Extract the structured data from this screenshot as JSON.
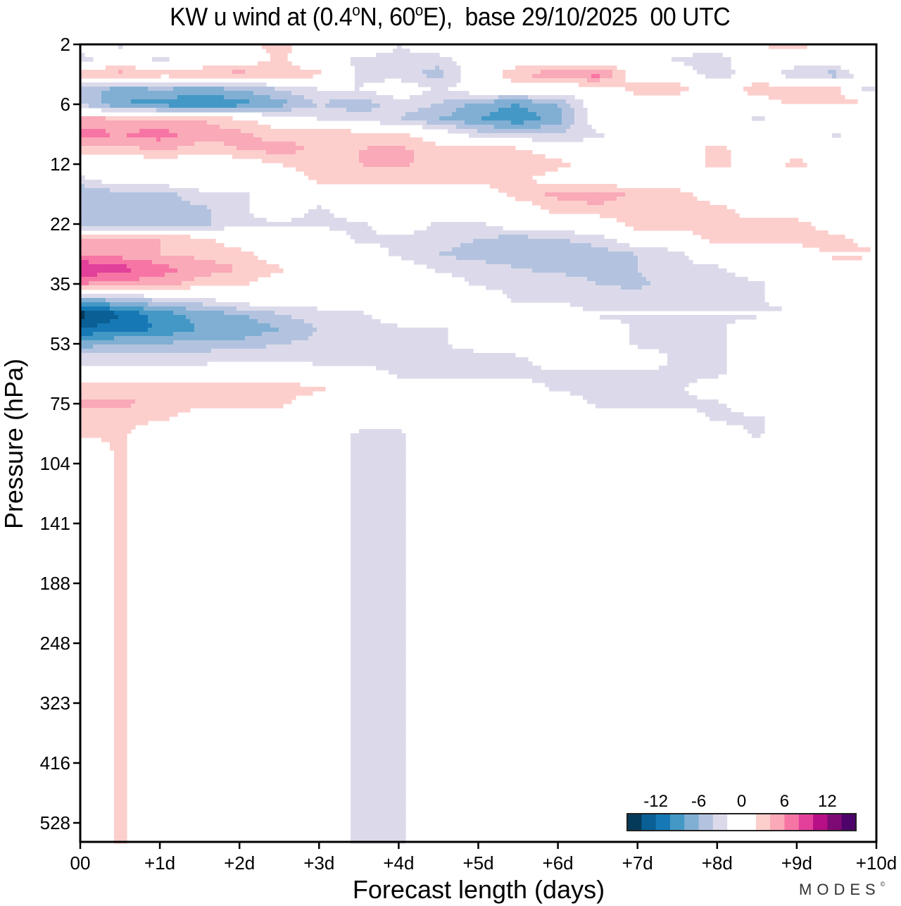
{
  "title": {
    "prefix": "KW u wind at (0.4",
    "deg1": "o",
    "mid": "N, 60",
    "deg2": "o",
    "suffix": "E),  base 29/10/2025  00 UTC"
  },
  "logo": {
    "text": "MODES",
    "mark": "©"
  },
  "chart_data": {
    "type": "heatmap",
    "subtype": "filled-contour",
    "title": "KW u wind at (0.4°N, 60°E),  base 29/10/2025  00 UTC",
    "xlabel": "Forecast length (days)",
    "ylabel": "Pressure (hPa)",
    "x_ticks": [
      "00",
      "+1d",
      "+2d",
      "+3d",
      "+4d",
      "+5d",
      "+6d",
      "+7d",
      "+8d",
      "+9d",
      "+10d"
    ],
    "x_range_days": [
      0,
      10
    ],
    "y_ticks": [
      "2",
      "6",
      "12",
      "22",
      "35",
      "53",
      "75",
      "104",
      "141",
      "188",
      "248",
      "323",
      "416",
      "528"
    ],
    "y_axis": "pressure levels, top to bottom, equally spaced (level index)",
    "colorbar": {
      "ticks": [
        "-12",
        "-6",
        "0",
        "6",
        "12"
      ],
      "levels": [
        -16,
        -14,
        -12,
        -10,
        -8,
        -6,
        -4,
        -2,
        2,
        4,
        6,
        8,
        10,
        12,
        14,
        16
      ],
      "colors": [
        "#063a5a",
        "#0a5f95",
        "#1679b6",
        "#4498c6",
        "#80afd3",
        "#b3c3df",
        "#dcdaea",
        "#ffffff",
        "#fccfcd",
        "#f9a9b7",
        "#f775a4",
        "#e2409a",
        "#b70f85",
        "#7e0a75",
        "#4e036b"
      ],
      "placement": "bottom-right inside plot"
    },
    "grid_x_days": [
      0,
      0.5,
      1,
      1.5,
      2,
      2.5,
      3,
      3.5,
      4,
      4.5,
      5,
      5.5,
      6,
      6.5,
      7,
      7.5,
      8,
      8.5,
      9,
      9.5,
      10
    ],
    "grid_y_level_index": [
      0,
      0.5,
      1,
      1.5,
      2,
      2.5,
      3,
      3.5,
      4,
      4.5,
      5,
      5.5,
      6,
      6.5,
      7,
      7.5,
      8,
      8.5,
      9,
      9.5,
      10,
      10.5,
      11,
      11.5,
      12,
      12.5,
      13,
      13.5
    ],
    "u_values_ms": [
      [
        0,
        -2.5,
        0,
        0,
        1,
        3,
        0,
        0,
        -2,
        0,
        0,
        2,
        1,
        2,
        0,
        0,
        -1,
        2,
        3,
        0,
        4
      ],
      [
        -3,
        0,
        -2.5,
        0,
        0,
        2.5,
        0,
        -2.5,
        -2.5,
        -3,
        0,
        0,
        0,
        0,
        0,
        -2.5,
        -3,
        0,
        0,
        0,
        3
      ],
      [
        3,
        5,
        3,
        3.5,
        5,
        3,
        2.5,
        -2.5,
        -3,
        -5,
        0,
        4,
        5.5,
        7,
        0,
        0,
        -3.5,
        0,
        -4,
        -5,
        2
      ],
      [
        -5,
        -7,
        -6,
        -7,
        -6,
        -4,
        -2,
        -2,
        0,
        -2.5,
        0,
        0,
        0,
        0,
        3,
        3,
        0,
        3.5,
        3.5,
        3,
        -5
      ],
      [
        -4,
        -8,
        -9,
        -10,
        -9,
        -7,
        -4,
        -5.5,
        -3,
        -4,
        -7,
        -8,
        -6,
        0,
        0,
        0,
        0,
        0,
        2.5,
        2.5,
        3
      ],
      [
        5,
        4.5,
        4,
        4,
        2.5,
        0,
        -2,
        -2.5,
        -4,
        -6,
        -8,
        -9.5,
        -7,
        0,
        0,
        0,
        0,
        -2.5,
        0,
        0,
        4
      ],
      [
        7,
        6,
        7,
        5,
        4.5,
        3,
        4,
        3,
        2.5,
        0,
        -3,
        -4,
        -4,
        -2.5,
        0,
        0,
        0,
        0,
        0,
        -2.5,
        0
      ],
      [
        3.5,
        3,
        4.5,
        3,
        4,
        5,
        3.5,
        4,
        4.5,
        3,
        4,
        2.5,
        0,
        0,
        0,
        0,
        3,
        0,
        0,
        0,
        0
      ],
      [
        0,
        0,
        0,
        0,
        0,
        2,
        3.5,
        4,
        4.5,
        3,
        3.5,
        4,
        3,
        0,
        0,
        0,
        3,
        0,
        3,
        0,
        0
      ],
      [
        -2.5,
        0,
        0,
        0,
        0,
        0,
        2.5,
        2.5,
        3,
        2.5,
        3,
        3,
        0,
        0,
        0,
        0,
        0,
        0,
        0,
        0,
        0
      ],
      [
        -6,
        -5,
        -5,
        -2.5,
        -2.5,
        0,
        0,
        0,
        0,
        0,
        0,
        3,
        4.5,
        5,
        3.5,
        3,
        0,
        0,
        0,
        0,
        0
      ],
      [
        -6,
        -5,
        -5,
        -4.5,
        -2.5,
        0,
        -2.5,
        0,
        0,
        0,
        0,
        0,
        3,
        3.5,
        3.5,
        3,
        3,
        0,
        0,
        0,
        0
      ],
      [
        -6,
        -6,
        -6,
        -4.5,
        -2.5,
        -2.5,
        -2.5,
        -2.5,
        0,
        -2.5,
        -2.5,
        0,
        0,
        0,
        3,
        3,
        3,
        3,
        3,
        0,
        0
      ],
      [
        5,
        4,
        4,
        3,
        0,
        0,
        0,
        -2.5,
        -2.5,
        -3,
        -4,
        -5,
        -4,
        -3,
        0,
        0,
        3,
        3,
        3,
        3,
        0
      ],
      [
        6,
        5,
        4,
        3.5,
        3,
        0,
        0,
        0,
        -2.5,
        -4,
        -5,
        -5,
        -6,
        -5,
        -4,
        -2.5,
        0,
        0,
        0,
        3,
        2.5
      ],
      [
        10,
        9,
        7,
        5,
        4,
        2.5,
        0,
        0,
        0,
        -2.5,
        -3,
        -4,
        -4.5,
        -4.5,
        -4,
        -2.5,
        -2.5,
        0,
        0,
        0,
        0
      ],
      [
        6,
        5,
        5,
        3,
        2.5,
        0,
        0,
        0,
        0,
        0,
        -2.5,
        -2.5,
        -3,
        -4,
        -4.5,
        -3,
        -3,
        -2.5,
        0,
        0,
        0
      ],
      [
        -6,
        -5,
        -3,
        -2.5,
        0,
        0,
        0,
        2.5,
        0,
        0,
        0,
        -2.5,
        -2.5,
        -3,
        -3,
        -3,
        -2.5,
        -2.5,
        0,
        0,
        0
      ],
      [
        -15,
        -12,
        -9,
        -7,
        -6,
        -4,
        -3,
        -2.5,
        0,
        0,
        0,
        0,
        0,
        -2.5,
        -2.5,
        -2.5,
        -2.5,
        -2.5,
        -2.5,
        -2.5,
        -2.5
      ],
      [
        -12,
        -11,
        -10,
        -8,
        -8,
        -6,
        -4,
        -3,
        -2.5,
        -2.5,
        0,
        0,
        0,
        0,
        -2.5,
        -2.5,
        -2.5,
        0,
        -2.5,
        -2.5,
        -2.5
      ],
      [
        -7,
        -6,
        -6,
        -5,
        -5,
        -4,
        -3.5,
        -3.5,
        -2.5,
        -2.5,
        0,
        0,
        0,
        0,
        -2.5,
        -2.5,
        -2.5,
        0,
        0,
        -2.5,
        -2.5
      ],
      [
        -3,
        -3,
        -3,
        -3,
        -2.5,
        -2.5,
        -3,
        -3,
        -3.5,
        -3.5,
        -4,
        -2.5,
        0,
        0,
        0,
        -2.5,
        -2.5,
        0,
        0,
        0,
        -2.5
      ],
      [
        0,
        0,
        0,
        0,
        0,
        0,
        0,
        0,
        -2.5,
        -2.5,
        -2.5,
        -3,
        -2.5,
        -2.5,
        -2.5,
        -2.5,
        -2.5,
        0,
        0,
        0,
        0
      ],
      [
        3,
        3,
        3,
        3.5,
        3.5,
        3,
        2.5,
        0,
        0,
        0,
        0,
        0,
        -2.5,
        -2.5,
        -2.5,
        -2.5,
        0,
        0,
        0,
        0,
        0
      ],
      [
        4.5,
        4.5,
        3.5,
        3,
        3,
        2.5,
        0,
        0,
        0,
        0,
        0,
        0,
        0,
        -2.5,
        -2.5,
        -2.5,
        -2.5,
        0,
        0,
        0,
        0
      ],
      [
        3,
        2.5,
        2.5,
        0,
        0,
        0,
        0,
        0,
        0,
        0,
        0,
        0,
        0,
        0,
        0,
        0,
        -2.5,
        -2.5,
        0,
        0,
        0
      ],
      [
        2.5,
        2.5,
        0,
        0,
        0,
        0,
        0,
        -2.5,
        -2.5,
        0,
        0,
        0,
        0,
        0,
        0,
        0,
        0,
        -2.5,
        0,
        0,
        -2.5
      ],
      [
        0,
        2.5,
        0,
        0,
        0,
        0,
        0,
        -2.5,
        -2.5,
        0,
        0,
        0,
        0,
        0,
        0,
        0,
        0,
        0,
        0,
        0,
        0
      ]
    ]
  }
}
